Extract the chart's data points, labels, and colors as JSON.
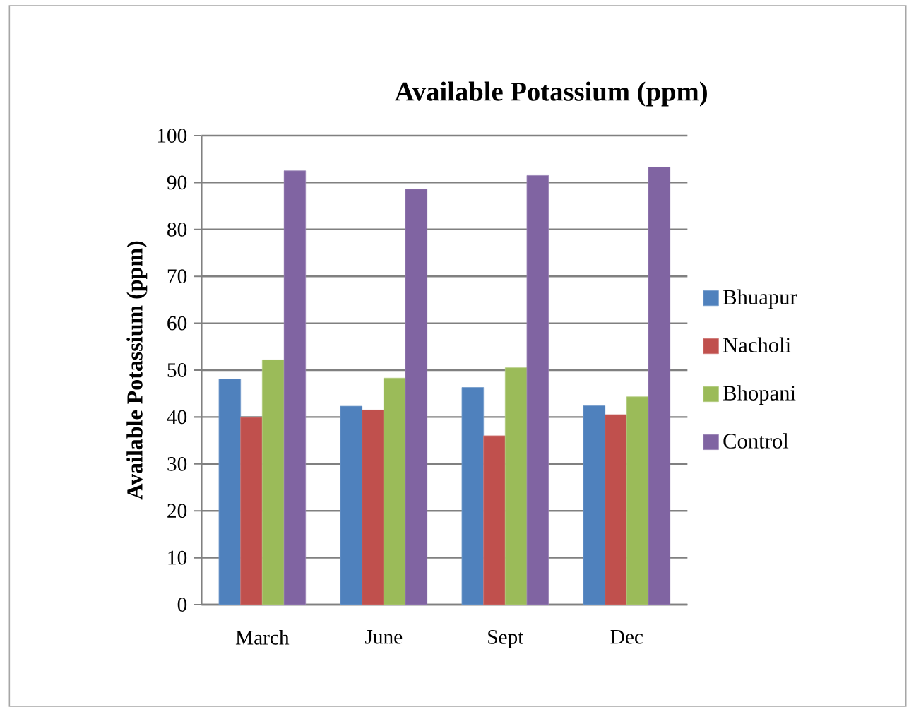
{
  "chart_data": {
    "type": "bar",
    "title": "Available Potassium (ppm)",
    "ylabel": "Available Potassium (ppm)",
    "categories": [
      "March",
      "June",
      "Sept",
      "Dec"
    ],
    "series": [
      {
        "name": "Bhuapur",
        "color": "#4f81bd",
        "values": [
          48.1,
          42.3,
          46.3,
          42.4
        ]
      },
      {
        "name": "Nacholi",
        "color": "#c0504d",
        "values": [
          39.9,
          41.5,
          36.0,
          40.5
        ]
      },
      {
        "name": "Bhopani",
        "color": "#9bbb59",
        "values": [
          52.2,
          48.3,
          50.5,
          44.3
        ]
      },
      {
        "name": "Control",
        "color": "#8064a2",
        "values": [
          92.5,
          88.6,
          91.5,
          93.3
        ]
      }
    ],
    "ylim": [
      0,
      100
    ],
    "yticks": [
      0,
      10,
      20,
      30,
      40,
      50,
      60,
      70,
      80,
      90,
      100
    ],
    "grid": "y",
    "legend": "right"
  }
}
